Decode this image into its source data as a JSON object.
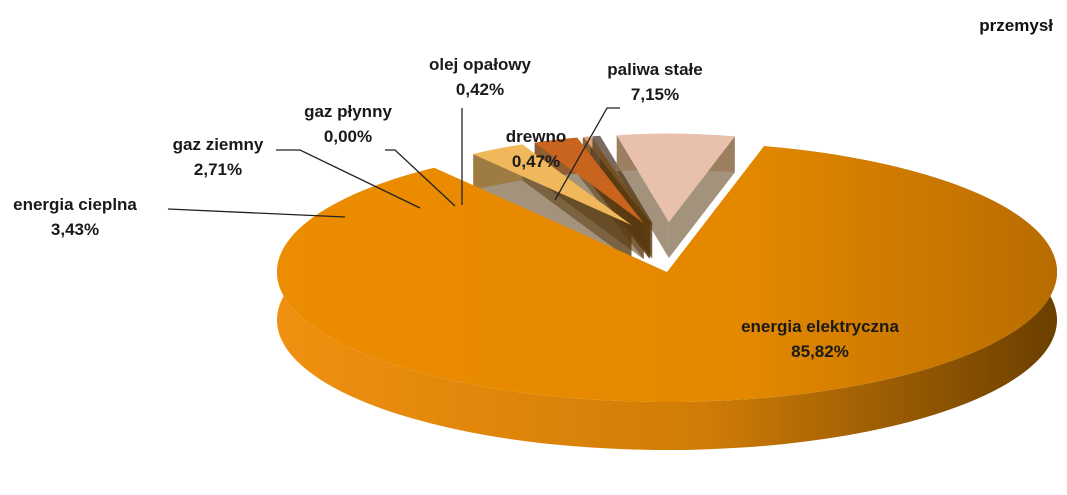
{
  "chart_data": {
    "type": "pie",
    "title": "przemysł",
    "slices": [
      {
        "label": "energia elektryczna",
        "value_label": "85,82%",
        "value": 85.82,
        "color": "#e88a00"
      },
      {
        "label": "energia cieplna",
        "value_label": "3,43%",
        "value": 3.43,
        "color": "#f0b85a"
      },
      {
        "label": "gaz ziemny",
        "value_label": "2,71%",
        "value": 2.71,
        "color": "#c8641e"
      },
      {
        "label": "gaz płynny",
        "value_label": "0,00%",
        "value": 0.0,
        "color": "#b05010"
      },
      {
        "label": "olej opałowy",
        "value_label": "0,42%",
        "value": 0.42,
        "color": "#e2a06e"
      },
      {
        "label": "drewno",
        "value_label": "0,47%",
        "value": 0.47,
        "color": "#7a6a60"
      },
      {
        "label": "paliwa stałe",
        "value_label": "7,15%",
        "value": 7.15,
        "color": "#e8c0ac"
      }
    ]
  }
}
